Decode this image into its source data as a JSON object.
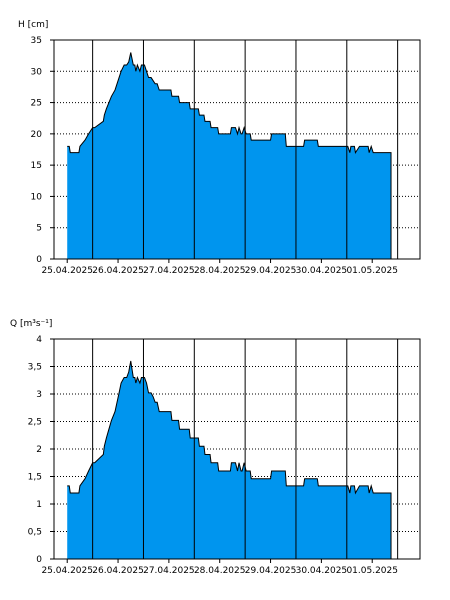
{
  "chart_data": [
    {
      "type": "area",
      "ylabel": "H [cm]",
      "ylim": [
        0,
        35
      ],
      "yticks": [
        0,
        5,
        10,
        15,
        20,
        25,
        30,
        35
      ],
      "ytick_labels": [
        "0",
        "5",
        "10",
        "15",
        "20",
        "25",
        "30",
        "35"
      ],
      "xlim": [
        -0.26,
        6.94
      ],
      "xticks": [
        0,
        1,
        2,
        3,
        4,
        5,
        6
      ],
      "xtick_labels": [
        "25.04.2025",
        "26.04.2025",
        "27.04.2025",
        "28.04.2025",
        "29.04.2025",
        "30.04.2025",
        "01.05.2025"
      ],
      "grid": "vertical solid at day boundaries, horizontal dotted",
      "fill_color": "#0095ee",
      "line_color": "#000000",
      "series": [
        {
          "x": [
            0.0,
            0.04,
            0.06,
            0.23,
            0.25,
            0.35,
            0.42,
            0.5,
            0.54,
            0.71,
            0.73,
            0.77,
            0.82,
            0.87,
            0.94,
            0.98,
            1.02,
            1.06,
            1.12,
            1.17,
            1.21,
            1.25,
            1.3,
            1.33,
            1.35,
            1.38,
            1.43,
            1.46,
            1.52,
            1.56,
            1.6,
            1.65,
            1.69,
            1.73,
            1.77,
            1.81,
            1.85,
            2.04,
            2.06,
            2.19,
            2.21,
            2.4,
            2.42,
            2.58,
            2.6,
            2.69,
            2.71,
            2.81,
            2.83,
            2.96,
            2.98,
            3.21,
            3.23,
            3.31,
            3.35,
            3.38,
            3.42,
            3.44,
            3.48,
            3.52,
            3.54,
            3.6,
            3.62,
            3.73,
            3.75,
            4.0,
            4.02,
            4.29,
            4.31,
            4.65,
            4.67,
            4.92,
            4.94,
            5.0,
            5.04,
            5.52,
            5.56,
            5.58,
            5.65,
            5.67,
            5.75,
            5.77,
            5.92,
            5.94,
            5.98,
            6.02,
            6.04,
            6.12,
            6.15,
            6.37
          ],
          "y": [
            18,
            18,
            17,
            17,
            18,
            19,
            20,
            21,
            21,
            22,
            23,
            24,
            25,
            26,
            27,
            28,
            29,
            30,
            31,
            31,
            31.5,
            33,
            31,
            31,
            30,
            31,
            30,
            31,
            31,
            30,
            29,
            29,
            28.5,
            28,
            28,
            27,
            27,
            27,
            26,
            26,
            25,
            25,
            24,
            24,
            23,
            23,
            22,
            22,
            21,
            21,
            20,
            20,
            21,
            21,
            20,
            21,
            20,
            20,
            21,
            20,
            20,
            20,
            19,
            19,
            19,
            19,
            20,
            20,
            18,
            18,
            19,
            19,
            18,
            18,
            18,
            18,
            17,
            18,
            18,
            17,
            18,
            18,
            18,
            17,
            18,
            17,
            17,
            17,
            17,
            17
          ]
        }
      ]
    },
    {
      "type": "area",
      "ylabel": "Q [m³s⁻¹]",
      "ylim": [
        0,
        4
      ],
      "yticks": [
        0,
        0.5,
        1,
        1.5,
        2,
        2.5,
        3,
        3.5,
        4
      ],
      "ytick_labels": [
        "0",
        "0,5",
        "1",
        "1,5",
        "2",
        "2,5",
        "3",
        "3,5",
        "4"
      ],
      "xlim": [
        -0.26,
        6.94
      ],
      "xticks": [
        0,
        1,
        2,
        3,
        4,
        5,
        6
      ],
      "xtick_labels": [
        "25.04.2025",
        "26.04.2025",
        "27.04.2025",
        "28.04.2025",
        "29.04.2025",
        "30.04.2025",
        "01.05.2025"
      ],
      "grid": "vertical solid at day boundaries, horizontal dotted",
      "fill_color": "#0095ee",
      "line_color": "#000000",
      "series": [
        {
          "x": [
            0.0,
            0.04,
            0.06,
            0.23,
            0.25,
            0.35,
            0.42,
            0.5,
            0.54,
            0.71,
            0.73,
            0.77,
            0.82,
            0.87,
            0.94,
            0.98,
            1.02,
            1.06,
            1.12,
            1.17,
            1.21,
            1.25,
            1.3,
            1.33,
            1.35,
            1.38,
            1.43,
            1.46,
            1.52,
            1.56,
            1.6,
            1.65,
            1.69,
            1.73,
            1.77,
            1.81,
            1.85,
            2.04,
            2.06,
            2.19,
            2.21,
            2.4,
            2.42,
            2.58,
            2.6,
            2.69,
            2.71,
            2.81,
            2.83,
            2.96,
            2.98,
            3.21,
            3.23,
            3.31,
            3.35,
            3.38,
            3.42,
            3.44,
            3.48,
            3.52,
            3.54,
            3.6,
            3.62,
            3.73,
            3.75,
            4.0,
            4.02,
            4.29,
            4.31,
            4.65,
            4.67,
            4.92,
            4.94,
            5.0,
            5.04,
            5.52,
            5.56,
            5.58,
            5.65,
            5.67,
            5.75,
            5.77,
            5.92,
            5.94,
            5.98,
            6.02,
            6.04,
            6.12,
            6.15,
            6.37
          ],
          "y": [
            1.33,
            1.33,
            1.2,
            1.2,
            1.33,
            1.46,
            1.6,
            1.75,
            1.75,
            1.9,
            2.05,
            2.2,
            2.36,
            2.52,
            2.68,
            2.85,
            3.02,
            3.2,
            3.3,
            3.3,
            3.4,
            3.6,
            3.3,
            3.3,
            3.2,
            3.3,
            3.2,
            3.3,
            3.3,
            3.2,
            3.02,
            3.02,
            2.95,
            2.85,
            2.85,
            2.68,
            2.68,
            2.68,
            2.52,
            2.52,
            2.36,
            2.36,
            2.2,
            2.2,
            2.05,
            2.05,
            1.9,
            1.9,
            1.75,
            1.75,
            1.6,
            1.6,
            1.75,
            1.75,
            1.6,
            1.75,
            1.6,
            1.6,
            1.75,
            1.6,
            1.6,
            1.6,
            1.46,
            1.46,
            1.46,
            1.46,
            1.6,
            1.6,
            1.33,
            1.33,
            1.46,
            1.46,
            1.33,
            1.33,
            1.33,
            1.33,
            1.2,
            1.33,
            1.33,
            1.2,
            1.33,
            1.33,
            1.33,
            1.2,
            1.33,
            1.2,
            1.2,
            1.2,
            1.2,
            1.2
          ]
        }
      ]
    }
  ]
}
